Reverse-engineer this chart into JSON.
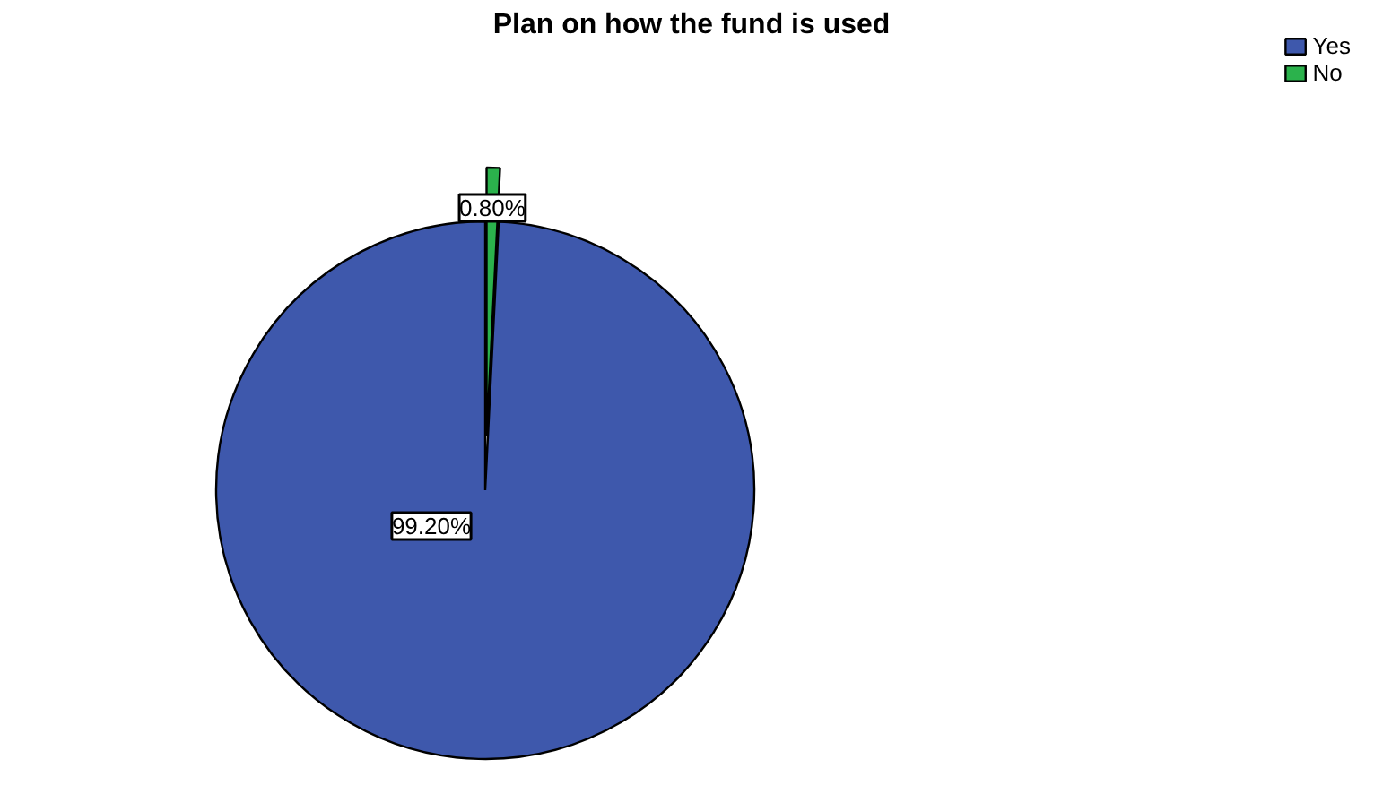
{
  "chart_data": {
    "type": "pie",
    "title": "Plan on how the fund is used",
    "categories": [
      "Yes",
      "No"
    ],
    "values": [
      99.2,
      0.8
    ],
    "colors": [
      "#3e58ac",
      "#2bb24c"
    ],
    "value_labels": [
      "99.20%",
      "0.80%"
    ],
    "legend": "top right"
  }
}
